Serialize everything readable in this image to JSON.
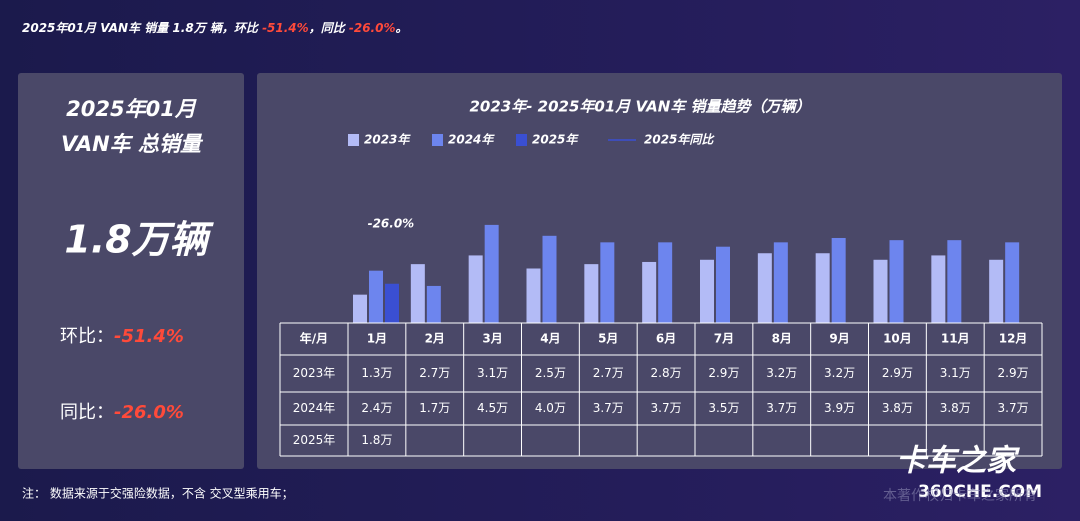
{
  "header": {
    "segments": [
      "2025年01月 VAN车 销量 1.8万 辆，环比 ",
      "-51.4%",
      "，同比 ",
      "-26.0%",
      "。"
    ]
  },
  "summary": {
    "title_line1": "2025年01月",
    "title_line2": "VAN车 总销量",
    "total": "1.8万辆",
    "mom_label": "环比：",
    "mom_value": "-51.4%",
    "yoy_label": "同比：",
    "yoy_value": "-26.0%"
  },
  "chart_data": {
    "type": "bar",
    "title": "2023年- 2025年01月 VAN车 销量趋势（万辆）",
    "categories": [
      "1月",
      "2月",
      "3月",
      "4月",
      "5月",
      "6月",
      "7月",
      "8月",
      "9月",
      "10月",
      "11月",
      "12月"
    ],
    "series": [
      {
        "name": "2023年",
        "color": "#b3bbf6",
        "values": [
          1.3,
          2.7,
          3.1,
          2.5,
          2.7,
          2.8,
          2.9,
          3.2,
          3.2,
          2.9,
          3.1,
          2.9
        ],
        "value_labels": [
          "1.3万",
          "2.7万",
          "3.1万",
          "2.5万",
          "2.7万",
          "2.8万",
          "2.9万",
          "3.2万",
          "3.2万",
          "2.9万",
          "3.1万",
          "2.9万"
        ]
      },
      {
        "name": "2024年",
        "color": "#6d85ee",
        "values": [
          2.4,
          1.7,
          4.5,
          4.0,
          3.7,
          3.7,
          3.5,
          3.7,
          3.9,
          3.8,
          3.8,
          3.7
        ],
        "value_labels": [
          "2.4万",
          "1.7万",
          "4.5万",
          "4.0万",
          "3.7万",
          "3.7万",
          "3.5万",
          "3.7万",
          "3.9万",
          "3.8万",
          "3.8万",
          "3.7万"
        ]
      },
      {
        "name": "2025年",
        "color": "#3a4fd2",
        "values": [
          1.8,
          null,
          null,
          null,
          null,
          null,
          null,
          null,
          null,
          null,
          null,
          null
        ],
        "value_labels": [
          "1.8万",
          null,
          null,
          null,
          null,
          null,
          null,
          null,
          null,
          null,
          null,
          null
        ]
      },
      {
        "name": "2025年同比",
        "type": "line",
        "color": "#3a4fd2",
        "values": [
          -26.0,
          null,
          null,
          null,
          null,
          null,
          null,
          null,
          null,
          null,
          null,
          null
        ],
        "value_labels": [
          "-26.0%",
          null,
          null,
          null,
          null,
          null,
          null,
          null,
          null,
          null,
          null,
          null
        ]
      }
    ],
    "ylim": [
      0,
      5
    ],
    "table_corner": "年/月"
  },
  "note": "注：  数据来源于交强险数据，不含 交叉型乘用车；",
  "watermarks": [
    "卡车之家",
    "360CHE.COM",
    "本著作权归卡车之家所有"
  ]
}
